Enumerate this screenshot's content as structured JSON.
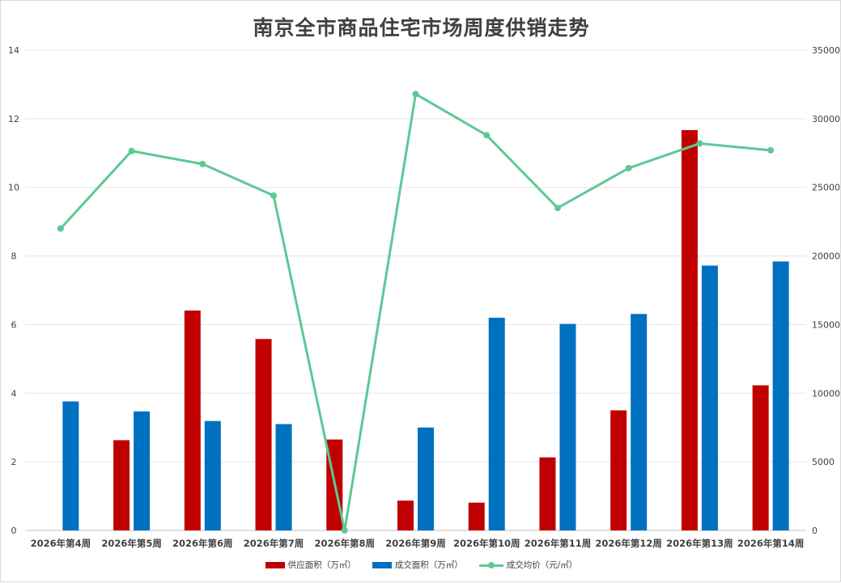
{
  "chart_data": {
    "type": "bar",
    "title": "南京全市商品住宅市场周度供销走势",
    "categories": [
      "2026年第4周",
      "2026年第5周",
      "2026年第6周",
      "2026年第7周",
      "2026年第8周",
      "2026年第9周",
      "2026年第10周",
      "2026年第11周",
      "2026年第12周",
      "2026年第13周",
      "2026年第14周"
    ],
    "series": [
      {
        "name": "供应面积（万㎡）",
        "type": "bar",
        "axis": "left",
        "color": "#c00000",
        "values": [
          null,
          2.63,
          6.41,
          5.58,
          2.65,
          0.87,
          0.81,
          2.13,
          3.5,
          11.67,
          4.23
        ]
      },
      {
        "name": "成交面积（万㎡）",
        "type": "bar",
        "axis": "left",
        "color": "#0070c0",
        "values": [
          3.76,
          3.47,
          3.19,
          3.1,
          null,
          3.0,
          6.2,
          6.02,
          6.31,
          7.72,
          7.84
        ]
      },
      {
        "name": "成交均价（元/㎡）",
        "type": "line",
        "axis": "right",
        "color": "#5cc995",
        "values": [
          22000,
          27650,
          26700,
          24400,
          0,
          31800,
          28800,
          23500,
          26400,
          28200,
          27700
        ]
      }
    ],
    "ylim": [
      0,
      14
    ],
    "yticks": [
      "0",
      "2",
      "4",
      "6",
      "8",
      "10",
      "12",
      "14"
    ],
    "y2lim": [
      0,
      35000
    ],
    "y2ticks": [
      "0",
      "5000",
      "10000",
      "15000",
      "20000",
      "25000",
      "30000",
      "35000"
    ],
    "grid": true,
    "legend": "bottom"
  }
}
